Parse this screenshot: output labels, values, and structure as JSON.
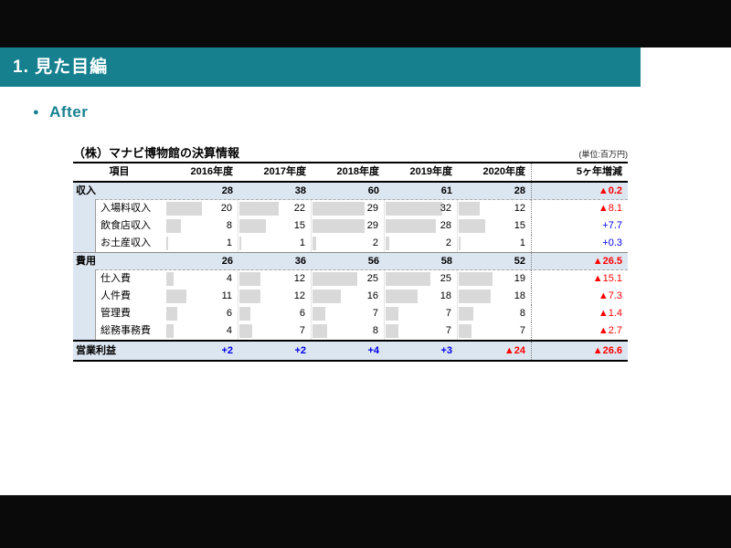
{
  "slide": {
    "section_title": "1. 見た目編",
    "bullet_label": "After"
  },
  "table": {
    "title": "（株）マナビ博物館の決算情報",
    "unit_note": "(単位:百万円)",
    "columns": [
      "項目",
      "2016年度",
      "2017年度",
      "2018年度",
      "2019年度",
      "2020年度",
      "5ヶ年増減"
    ],
    "sections": [
      {
        "label": "収入",
        "values": [
          "28",
          "38",
          "60",
          "61",
          "28"
        ],
        "change": "▲0.2",
        "rows": [
          {
            "label": "入場料収入",
            "values": [
              "20",
              "22",
              "29",
              "32",
              "12"
            ],
            "change": "▲8.1"
          },
          {
            "label": "飲食店収入",
            "values": [
              "8",
              "15",
              "29",
              "28",
              "15"
            ],
            "change": "+7.7"
          },
          {
            "label": "お土産収入",
            "values": [
              "1",
              "1",
              "2",
              "2",
              "1"
            ],
            "change": "+0.3"
          }
        ]
      },
      {
        "label": "費用",
        "values": [
          "26",
          "36",
          "56",
          "58",
          "52"
        ],
        "change": "▲26.5",
        "rows": [
          {
            "label": "仕入費",
            "values": [
              "4",
              "12",
              "25",
              "25",
              "19"
            ],
            "change": "▲15.1"
          },
          {
            "label": "人件費",
            "values": [
              "11",
              "12",
              "16",
              "18",
              "18"
            ],
            "change": "▲7.3"
          },
          {
            "label": "管理費",
            "values": [
              "6",
              "6",
              "7",
              "7",
              "8"
            ],
            "change": "▲1.4"
          },
          {
            "label": "総務事務費",
            "values": [
              "4",
              "7",
              "8",
              "7",
              "7"
            ],
            "change": "▲2.7"
          }
        ]
      }
    ],
    "footer": {
      "label": "営業利益",
      "values": [
        "+2",
        "+2",
        "+4",
        "+3",
        "▲24"
      ],
      "change": "▲26.6"
    },
    "bar_scale_max": 41
  },
  "colors": {
    "accent_teal": "#16808F",
    "section_row_bg": "#DCE6F1",
    "data_bar_gray": "#D9D9D9",
    "negative_red": "#FF0000",
    "positive_blue": "#0000EE"
  }
}
